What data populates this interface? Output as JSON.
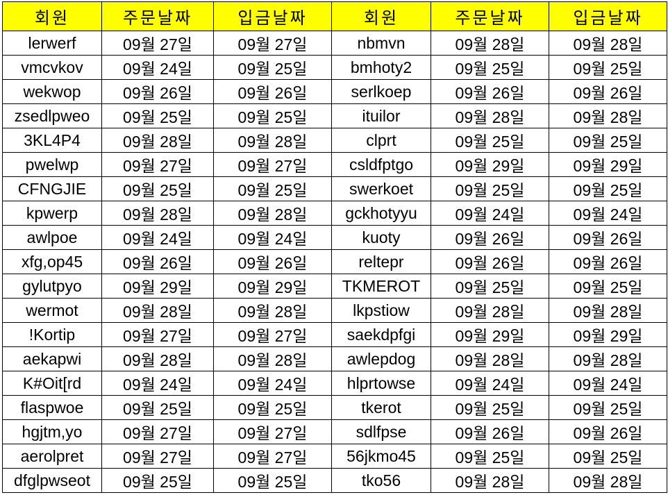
{
  "sheet": {
    "header_color": "#ffff00",
    "headers": [
      "회원",
      "주문날짜",
      "입금날짜",
      "회원",
      "주문날짜",
      "입금날짜"
    ],
    "rows": [
      [
        "lerwerf",
        "09월 27일",
        "09월 27일",
        "nbmvn",
        "09월 28일",
        "09월 28일"
      ],
      [
        "vmcvkov",
        "09월 24일",
        "09월 25일",
        "bmhoty2",
        "09월 25일",
        "09월 25일"
      ],
      [
        "wekwop",
        "09월 26일",
        "09월 26일",
        "serlkoep",
        "09월 26일",
        "09월 26일"
      ],
      [
        "zsedlpweo",
        "09월 25일",
        "09월 25일",
        "ituilor",
        "09월 28일",
        "09월 28일"
      ],
      [
        "3KL4P4",
        "09월 28일",
        "09월 28일",
        "clprt",
        "09월 25일",
        "09월 25일"
      ],
      [
        "pwelwp",
        "09월 27일",
        "09월 27일",
        "csldfptgo",
        "09월 29일",
        "09월 29일"
      ],
      [
        "CFNGJIE",
        "09월 25일",
        "09월 25일",
        "swerkoet",
        "09월 25일",
        "09월 25일"
      ],
      [
        "kpwerp",
        "09월 28일",
        "09월 28일",
        "gckhotyyu",
        "09월 24일",
        "09월 24일"
      ],
      [
        "awlpoe",
        "09월 24일",
        "09월 24일",
        "kuoty",
        "09월 26일",
        "09월 26일"
      ],
      [
        "xfg,op45",
        "09월 26일",
        "09월 26일",
        "reltepr",
        "09월 26일",
        "09월 26일"
      ],
      [
        "gylutpyo",
        "09월 29일",
        "09월 29일",
        "TKMEROT",
        "09월 25일",
        "09월 25일"
      ],
      [
        "wermot",
        "09월 28일",
        "09월 28일",
        "lkpstiow",
        "09월 28일",
        "09월 28일"
      ],
      [
        "!Kortip",
        "09월 27일",
        "09월 27일",
        "saekdpfgi",
        "09월 29일",
        "09월 29일"
      ],
      [
        "aekapwi",
        "09월 28일",
        "09월 28일",
        "awlepdog",
        "09월 28일",
        "09월 28일"
      ],
      [
        "K#Oit[rd",
        "09월 24일",
        "09월 24일",
        "hlprtowse",
        "09월 24일",
        "09월 24일"
      ],
      [
        "flaspwoe",
        "09월 25일",
        "09월 25일",
        "tkerot",
        "09월 25일",
        "09월 25일"
      ],
      [
        "hgjtm,yo",
        "09월 27일",
        "09월 27일",
        "sdlfpse",
        "09월 26일",
        "09월 26일"
      ],
      [
        "aerolpret",
        "09월 27일",
        "09월 27일",
        "56jkmo45",
        "09월 25일",
        "09월 25일"
      ],
      [
        "dfglpwseot",
        "09월 25일",
        "09월 25일",
        "tko56",
        "09월 28일",
        "09월 28일"
      ]
    ]
  }
}
